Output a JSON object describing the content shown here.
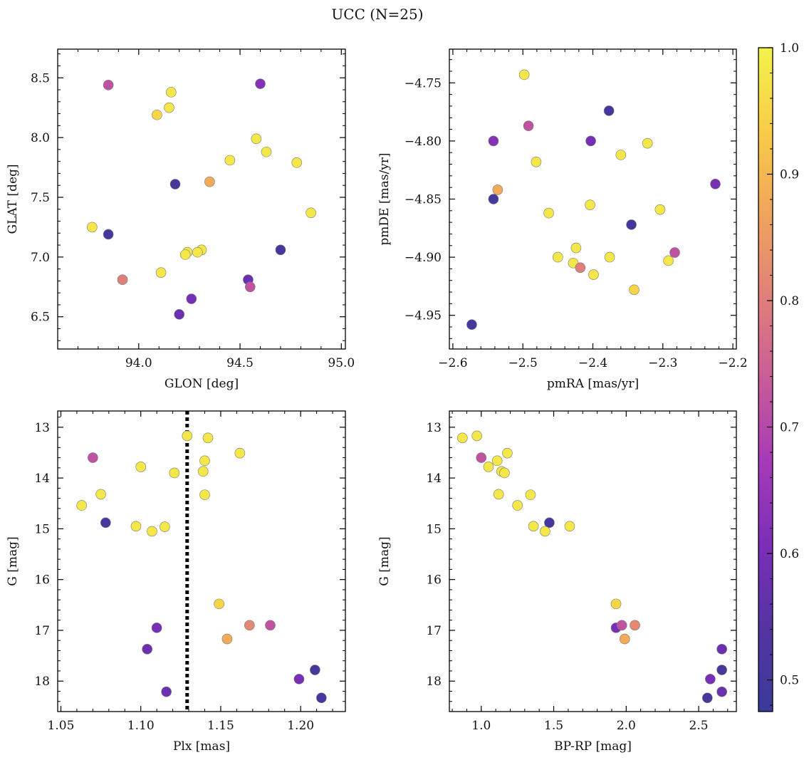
{
  "figure": {
    "title": "UCC (N=25)"
  },
  "colorbar": {
    "min": 0.475,
    "max": 1.0,
    "ticks": [
      0.5,
      0.6,
      0.7,
      0.8,
      0.9,
      1.0
    ],
    "tick_labels": [
      "0.5",
      "0.6",
      "0.7",
      "0.8",
      "0.9",
      "1.0"
    ],
    "colormap": "plasma",
    "colors": [
      "#3a3b99",
      "#5434a3",
      "#7b2eb8",
      "#a63ab8",
      "#c85c98",
      "#e0807a",
      "#f0a45c",
      "#f9cc48",
      "#f2f34a"
    ]
  },
  "chart_data": [
    {
      "type": "scatter",
      "title": "",
      "xlabel": "GLON [deg]",
      "ylabel": "GLAT [deg]",
      "xlim": [
        93.6,
        95.02
      ],
      "ylim": [
        6.23,
        8.74
      ],
      "y_inverted": false,
      "xticks": [
        94.0,
        94.5,
        95.0
      ],
      "xtick_labels": [
        "94.0",
        "94.5",
        "95.0"
      ],
      "yticks": [
        6.5,
        7.0,
        7.5,
        8.0,
        8.5
      ],
      "ytick_labels": [
        "6.5",
        "7.0",
        "7.5",
        "8.0",
        "8.5"
      ],
      "points": [
        {
          "x": 93.85,
          "y": 8.44,
          "c": 0.72
        },
        {
          "x": 94.6,
          "y": 8.45,
          "c": 0.62
        },
        {
          "x": 94.16,
          "y": 8.38,
          "c": 0.98
        },
        {
          "x": 94.15,
          "y": 8.25,
          "c": 0.98
        },
        {
          "x": 94.09,
          "y": 8.19,
          "c": 0.95
        },
        {
          "x": 94.58,
          "y": 7.99,
          "c": 0.98
        },
        {
          "x": 94.63,
          "y": 7.88,
          "c": 0.98
        },
        {
          "x": 94.45,
          "y": 7.81,
          "c": 0.98
        },
        {
          "x": 94.78,
          "y": 7.79,
          "c": 0.98
        },
        {
          "x": 94.35,
          "y": 7.63,
          "c": 0.88
        },
        {
          "x": 94.18,
          "y": 7.61,
          "c": 0.5
        },
        {
          "x": 94.85,
          "y": 7.37,
          "c": 0.98
        },
        {
          "x": 93.77,
          "y": 7.25,
          "c": 0.98
        },
        {
          "x": 93.85,
          "y": 7.19,
          "c": 0.5
        },
        {
          "x": 94.7,
          "y": 7.06,
          "c": 0.5
        },
        {
          "x": 94.31,
          "y": 7.06,
          "c": 0.98
        },
        {
          "x": 94.29,
          "y": 7.04,
          "c": 0.98
        },
        {
          "x": 94.24,
          "y": 7.04,
          "c": 0.98
        },
        {
          "x": 94.23,
          "y": 7.02,
          "c": 0.98
        },
        {
          "x": 94.11,
          "y": 6.87,
          "c": 0.98
        },
        {
          "x": 93.92,
          "y": 6.81,
          "c": 0.8
        },
        {
          "x": 94.54,
          "y": 6.81,
          "c": 0.58
        },
        {
          "x": 94.55,
          "y": 6.75,
          "c": 0.72
        },
        {
          "x": 94.26,
          "y": 6.65,
          "c": 0.6
        },
        {
          "x": 94.2,
          "y": 6.52,
          "c": 0.58
        }
      ]
    },
    {
      "type": "scatter",
      "title": "",
      "xlabel": "pmRA [mas/yr]",
      "ylabel": "pmDE [mas/yr]",
      "xlim": [
        -2.605,
        -2.195
      ],
      "ylim": [
        -4.979,
        -4.721
      ],
      "y_inverted": false,
      "xticks": [
        -2.6,
        -2.5,
        -2.4,
        -2.3,
        -2.2
      ],
      "xtick_labels": [
        "−2.6",
        "−2.5",
        "−2.4",
        "−2.3",
        "−2.2"
      ],
      "yticks": [
        -4.95,
        -4.9,
        -4.85,
        -4.8,
        -4.75
      ],
      "ytick_labels": [
        "−4.95",
        "−4.90",
        "−4.85",
        "−4.80",
        "−4.75"
      ],
      "points": [
        {
          "x": -2.498,
          "y": -4.743,
          "c": 0.98
        },
        {
          "x": -2.377,
          "y": -4.774,
          "c": 0.5
        },
        {
          "x": -2.492,
          "y": -4.787,
          "c": 0.72
        },
        {
          "x": -2.542,
          "y": -4.8,
          "c": 0.62
        },
        {
          "x": -2.403,
          "y": -4.8,
          "c": 0.6
        },
        {
          "x": -2.322,
          "y": -4.802,
          "c": 0.98
        },
        {
          "x": -2.36,
          "y": -4.812,
          "c": 0.98
        },
        {
          "x": -2.481,
          "y": -4.818,
          "c": 0.98
        },
        {
          "x": -2.225,
          "y": -4.837,
          "c": 0.6
        },
        {
          "x": -2.536,
          "y": -4.842,
          "c": 0.88
        },
        {
          "x": -2.542,
          "y": -4.85,
          "c": 0.5
        },
        {
          "x": -2.404,
          "y": -4.855,
          "c": 0.98
        },
        {
          "x": -2.304,
          "y": -4.859,
          "c": 0.98
        },
        {
          "x": -2.463,
          "y": -4.862,
          "c": 0.98
        },
        {
          "x": -2.345,
          "y": -4.872,
          "c": 0.5
        },
        {
          "x": -2.424,
          "y": -4.892,
          "c": 0.98
        },
        {
          "x": -2.283,
          "y": -4.896,
          "c": 0.72
        },
        {
          "x": -2.45,
          "y": -4.9,
          "c": 0.98
        },
        {
          "x": -2.376,
          "y": -4.9,
          "c": 0.98
        },
        {
          "x": -2.292,
          "y": -4.903,
          "c": 0.98
        },
        {
          "x": -2.428,
          "y": -4.905,
          "c": 0.98
        },
        {
          "x": -2.418,
          "y": -4.909,
          "c": 0.8
        },
        {
          "x": -2.399,
          "y": -4.915,
          "c": 0.98
        },
        {
          "x": -2.341,
          "y": -4.928,
          "c": 0.95
        },
        {
          "x": -2.573,
          "y": -4.958,
          "c": 0.5
        }
      ]
    },
    {
      "type": "scatter",
      "title": "",
      "xlabel": "Plx [mas]",
      "ylabel": "G [mag]",
      "xlim": [
        1.048,
        1.228
      ],
      "ylim": [
        12.68,
        18.6
      ],
      "y_inverted": true,
      "xticks": [
        1.05,
        1.1,
        1.15,
        1.2
      ],
      "xtick_labels": [
        "1.05",
        "1.10",
        "1.15",
        "1.20"
      ],
      "yticks": [
        13,
        14,
        15,
        16,
        17,
        18
      ],
      "ytick_labels": [
        "13",
        "14",
        "15",
        "16",
        "17",
        "18"
      ],
      "vline": {
        "x": 1.129,
        "style": "dotted",
        "color": "#000000"
      },
      "points": [
        {
          "x": 1.129,
          "y": 13.17,
          "c": 0.98
        },
        {
          "x": 1.142,
          "y": 13.21,
          "c": 0.98
        },
        {
          "x": 1.162,
          "y": 13.51,
          "c": 0.98
        },
        {
          "x": 1.07,
          "y": 13.6,
          "c": 0.72
        },
        {
          "x": 1.14,
          "y": 13.66,
          "c": 0.98
        },
        {
          "x": 1.1,
          "y": 13.78,
          "c": 0.98
        },
        {
          "x": 1.139,
          "y": 13.87,
          "c": 0.98
        },
        {
          "x": 1.121,
          "y": 13.9,
          "c": 0.98
        },
        {
          "x": 1.075,
          "y": 14.32,
          "c": 0.98
        },
        {
          "x": 1.14,
          "y": 14.33,
          "c": 0.98
        },
        {
          "x": 1.063,
          "y": 14.54,
          "c": 0.98
        },
        {
          "x": 1.078,
          "y": 14.88,
          "c": 0.5
        },
        {
          "x": 1.097,
          "y": 14.95,
          "c": 0.98
        },
        {
          "x": 1.115,
          "y": 14.96,
          "c": 0.98
        },
        {
          "x": 1.107,
          "y": 15.05,
          "c": 0.98
        },
        {
          "x": 1.149,
          "y": 16.48,
          "c": 0.95
        },
        {
          "x": 1.168,
          "y": 16.9,
          "c": 0.82
        },
        {
          "x": 1.181,
          "y": 16.9,
          "c": 0.72
        },
        {
          "x": 1.11,
          "y": 16.95,
          "c": 0.6
        },
        {
          "x": 1.154,
          "y": 17.17,
          "c": 0.88
        },
        {
          "x": 1.104,
          "y": 17.37,
          "c": 0.58
        },
        {
          "x": 1.209,
          "y": 17.78,
          "c": 0.5
        },
        {
          "x": 1.199,
          "y": 17.96,
          "c": 0.6
        },
        {
          "x": 1.116,
          "y": 18.21,
          "c": 0.58
        },
        {
          "x": 1.213,
          "y": 18.33,
          "c": 0.5
        }
      ]
    },
    {
      "type": "scatter",
      "title": "",
      "xlabel": "BP-RP [mag]",
      "ylabel": "G [mag]",
      "xlim": [
        0.78,
        2.76
      ],
      "ylim": [
        12.68,
        18.6
      ],
      "y_inverted": true,
      "xticks": [
        1.0,
        1.5,
        2.0,
        2.5
      ],
      "xtick_labels": [
        "1.0",
        "1.5",
        "2.0",
        "2.5"
      ],
      "yticks": [
        13,
        14,
        15,
        16,
        17,
        18
      ],
      "ytick_labels": [
        "13",
        "14",
        "15",
        "16",
        "17",
        "18"
      ],
      "points": [
        {
          "x": 0.87,
          "y": 13.21,
          "c": 0.98
        },
        {
          "x": 0.97,
          "y": 13.17,
          "c": 0.98
        },
        {
          "x": 1.0,
          "y": 13.6,
          "c": 0.72
        },
        {
          "x": 1.05,
          "y": 13.78,
          "c": 0.98
        },
        {
          "x": 1.11,
          "y": 13.66,
          "c": 0.98
        },
        {
          "x": 1.18,
          "y": 13.51,
          "c": 0.98
        },
        {
          "x": 1.14,
          "y": 13.87,
          "c": 0.98
        },
        {
          "x": 1.16,
          "y": 13.9,
          "c": 0.98
        },
        {
          "x": 1.12,
          "y": 14.32,
          "c": 0.98
        },
        {
          "x": 1.34,
          "y": 14.33,
          "c": 0.98
        },
        {
          "x": 1.25,
          "y": 14.54,
          "c": 0.98
        },
        {
          "x": 1.47,
          "y": 14.88,
          "c": 0.5
        },
        {
          "x": 1.36,
          "y": 14.95,
          "c": 0.98
        },
        {
          "x": 1.44,
          "y": 15.05,
          "c": 0.98
        },
        {
          "x": 1.61,
          "y": 14.95,
          "c": 0.98
        },
        {
          "x": 1.93,
          "y": 16.48,
          "c": 0.95
        },
        {
          "x": 1.93,
          "y": 16.95,
          "c": 0.6
        },
        {
          "x": 1.97,
          "y": 16.9,
          "c": 0.72
        },
        {
          "x": 2.06,
          "y": 16.9,
          "c": 0.82
        },
        {
          "x": 1.99,
          "y": 17.17,
          "c": 0.88
        },
        {
          "x": 2.66,
          "y": 17.37,
          "c": 0.58
        },
        {
          "x": 2.66,
          "y": 17.78,
          "c": 0.5
        },
        {
          "x": 2.58,
          "y": 17.96,
          "c": 0.6
        },
        {
          "x": 2.66,
          "y": 18.21,
          "c": 0.58
        },
        {
          "x": 2.56,
          "y": 18.33,
          "c": 0.5
        }
      ]
    }
  ]
}
